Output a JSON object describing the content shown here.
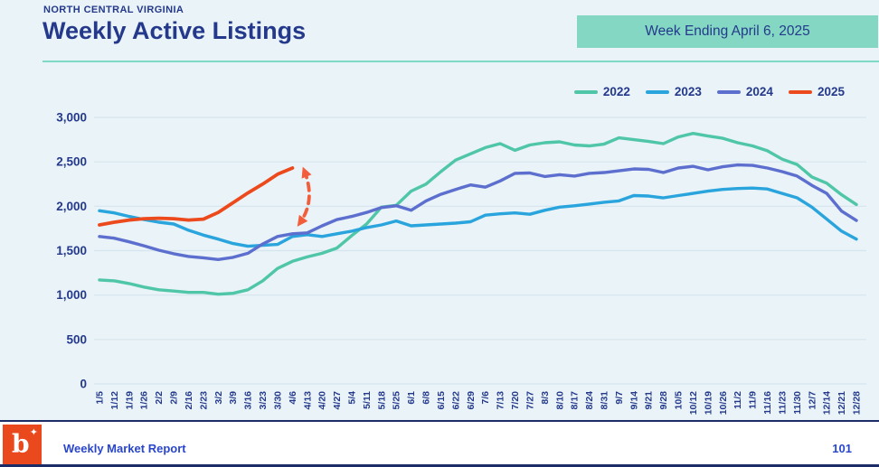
{
  "theme": {
    "background": "#e9f3f8",
    "navy_text": "#24398b",
    "badge_bg": "#84d8c3",
    "teal_divider": "#7ddac6",
    "gridline": "#d6e4ee",
    "footer_blue": "#2946cb",
    "logo_orange": "#e9491d",
    "footer_line_navy": "#1c2c66"
  },
  "header": {
    "eyebrow": "NORTH CENTRAL VIRGINIA",
    "title": "Weekly Active Listings",
    "badge": "Week Ending April 6, 2025"
  },
  "chart_data": {
    "type": "line",
    "title": "Weekly Active Listings",
    "region": "North Central Virginia",
    "subtitle": "Week Ending April 6, 2025",
    "xlabel": "",
    "ylabel": "",
    "ylim": [
      0,
      3000
    ],
    "grid": true,
    "legend_position": "top-right",
    "yticks": [
      {
        "value": 0,
        "label": "0"
      },
      {
        "value": 500,
        "label": "500"
      },
      {
        "value": 1000,
        "label": "1,000"
      },
      {
        "value": 1500,
        "label": "1,500"
      },
      {
        "value": 2000,
        "label": "2,000"
      },
      {
        "value": 2500,
        "label": "2,500"
      },
      {
        "value": 3000,
        "label": "3,000"
      }
    ],
    "x": [
      "1/5",
      "1/12",
      "1/19",
      "1/26",
      "2/2",
      "2/9",
      "2/16",
      "2/23",
      "3/2",
      "3/9",
      "3/16",
      "3/23",
      "3/30",
      "4/6",
      "4/13",
      "4/20",
      "4/27",
      "5/4",
      "5/11",
      "5/18",
      "5/25",
      "6/1",
      "6/8",
      "6/15",
      "6/22",
      "6/29",
      "7/6",
      "7/13",
      "7/20",
      "7/27",
      "8/3",
      "8/10",
      "8/17",
      "8/24",
      "8/31",
      "9/7",
      "9/14",
      "9/21",
      "9/28",
      "10/5",
      "10/12",
      "10/19",
      "10/26",
      "11/2",
      "11/9",
      "11/16",
      "11/23",
      "11/30",
      "12/7",
      "12/14",
      "12/21",
      "12/28"
    ],
    "series": [
      {
        "name": "2022",
        "color": "#4fc6a7",
        "values": [
          1170,
          1160,
          1130,
          1090,
          1060,
          1045,
          1030,
          1030,
          1010,
          1020,
          1060,
          1160,
          1300,
          1380,
          1430,
          1470,
          1530,
          1670,
          1800,
          1990,
          2010,
          2170,
          2250,
          2390,
          2520,
          2590,
          2660,
          2705,
          2630,
          2690,
          2715,
          2725,
          2690,
          2680,
          2700,
          2770,
          2750,
          2730,
          2705,
          2780,
          2820,
          2790,
          2765,
          2715,
          2680,
          2625,
          2530,
          2470,
          2330,
          2260,
          2130,
          2020
        ]
      },
      {
        "name": "2023",
        "color": "#2aa4dc",
        "values": [
          1950,
          1925,
          1885,
          1850,
          1820,
          1800,
          1730,
          1675,
          1630,
          1580,
          1550,
          1560,
          1570,
          1660,
          1680,
          1660,
          1690,
          1720,
          1760,
          1790,
          1835,
          1780,
          1790,
          1800,
          1810,
          1825,
          1900,
          1915,
          1925,
          1910,
          1955,
          1990,
          2005,
          2025,
          2045,
          2060,
          2120,
          2115,
          2095,
          2120,
          2145,
          2170,
          2190,
          2200,
          2205,
          2195,
          2145,
          2095,
          1990,
          1855,
          1720,
          1630
        ]
      },
      {
        "name": "2024",
        "color": "#5d6fce",
        "values": [
          1660,
          1640,
          1600,
          1555,
          1505,
          1465,
          1435,
          1420,
          1400,
          1425,
          1470,
          1575,
          1660,
          1690,
          1700,
          1780,
          1850,
          1885,
          1930,
          1985,
          2005,
          1955,
          2060,
          2135,
          2190,
          2240,
          2215,
          2285,
          2370,
          2375,
          2335,
          2355,
          2340,
          2370,
          2380,
          2400,
          2420,
          2415,
          2380,
          2430,
          2450,
          2410,
          2445,
          2465,
          2460,
          2430,
          2390,
          2340,
          2235,
          2145,
          1945,
          1840
        ]
      },
      {
        "name": "2025",
        "color": "#ec4a1d",
        "values": [
          1790,
          1820,
          1845,
          1860,
          1865,
          1860,
          1845,
          1855,
          1930,
          2040,
          2150,
          2250,
          2360,
          2430
        ]
      }
    ],
    "annotation": {
      "shape": "curved-double-headed-dashed-arrow",
      "color": "#f25d3b",
      "x_index": 13.8,
      "top_value": 2400,
      "bottom_value": 1810
    }
  },
  "footer": {
    "logo_letter": "b",
    "logo_sparkle": "✦",
    "report_label": "Weekly Market Report",
    "page_number": "101"
  }
}
